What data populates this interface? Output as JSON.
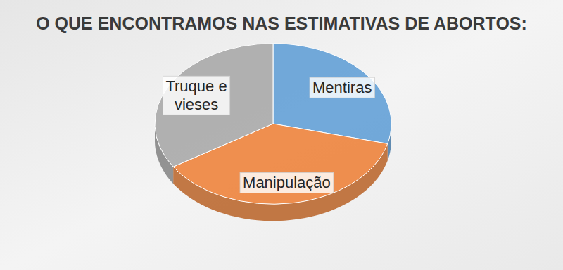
{
  "chart_data": {
    "type": "pie",
    "title": "O QUE ENCONTRAMOS NAS ESTIMATIVAS DE ABORTOS:",
    "categories": [
      "Mentiras",
      "Manipulação",
      "Truque e vieses"
    ],
    "values": [
      29,
      37,
      34
    ],
    "colors": [
      "#5b9bd5",
      "#ed7d31",
      "#a5a5a5"
    ]
  }
}
